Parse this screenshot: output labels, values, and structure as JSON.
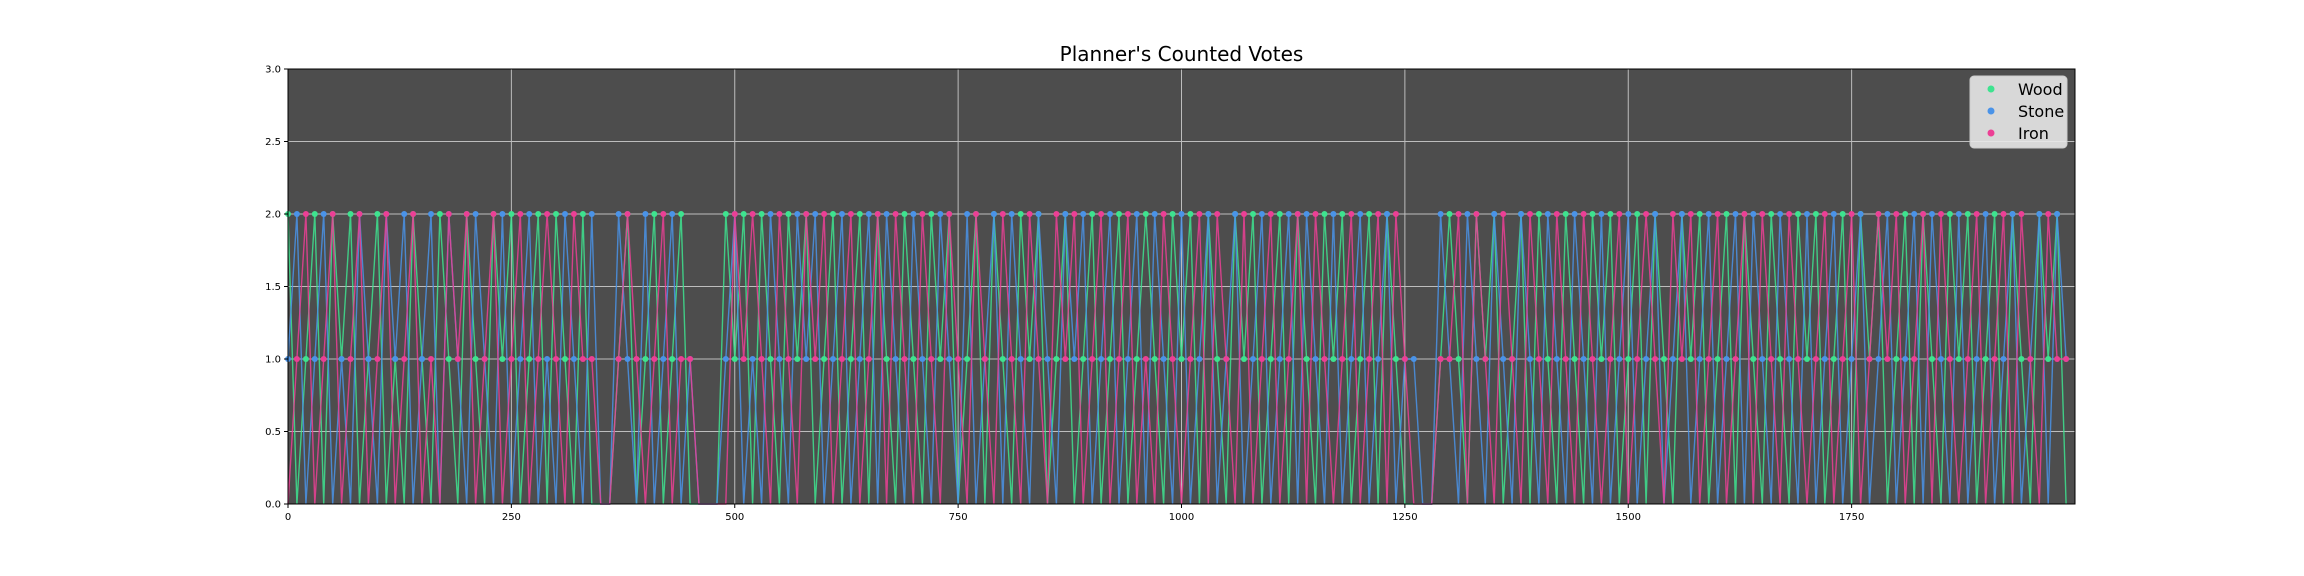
{
  "chart_data": {
    "type": "line",
    "title": "Planner's Counted Votes",
    "xlabel": "",
    "ylabel": "",
    "xlim": [
      0,
      2000
    ],
    "ylim": [
      0,
      3
    ],
    "x_ticks": [
      0,
      250,
      500,
      750,
      1000,
      1250,
      1500,
      1750
    ],
    "y_ticks": [
      0.0,
      0.5,
      1.0,
      1.5,
      2.0,
      2.5,
      3.0
    ],
    "x_tick_labels": [
      "0",
      "250",
      "500",
      "750",
      "1000",
      "1250",
      "1500",
      "1750"
    ],
    "y_tick_labels": [
      "0.0",
      "0.5",
      "1.0",
      "1.5",
      "2.0",
      "2.5",
      "3.0"
    ],
    "grid": true,
    "legend_position": "top-right",
    "series": [
      {
        "name": "Wood",
        "color": "#3ee38f"
      },
      {
        "name": "Stone",
        "color": "#4a93e8"
      },
      {
        "name": "Iron",
        "color": "#ec3f95"
      }
    ],
    "x_sampled": [
      0,
      10,
      20,
      30,
      40,
      50,
      60,
      70,
      80,
      90,
      100,
      110,
      120,
      130,
      140,
      150,
      160,
      170,
      180,
      190,
      200,
      210,
      220,
      230,
      240,
      250,
      260,
      270,
      280,
      290,
      300,
      310,
      320,
      330,
      340,
      350,
      360,
      370,
      380,
      390,
      400,
      410,
      420,
      430,
      440,
      450,
      460,
      470,
      480,
      490,
      500,
      510,
      520,
      530,
      540,
      550,
      560,
      570,
      580,
      590,
      600,
      610,
      620,
      630,
      640,
      650,
      660,
      670,
      680,
      690,
      700,
      710,
      720,
      730,
      740,
      750,
      760,
      770,
      780,
      790,
      800,
      810,
      820,
      830,
      840,
      850,
      860,
      870,
      880,
      890,
      900,
      910,
      920,
      930,
      940,
      950,
      960,
      970,
      980,
      990,
      1000,
      1010,
      1020,
      1030,
      1040,
      1050,
      1060,
      1070,
      1080,
      1090,
      1100,
      1110,
      1120,
      1130,
      1140,
      1150,
      1160,
      1170,
      1180,
      1190,
      1200,
      1210,
      1220,
      1230,
      1240,
      1250,
      1260,
      1270,
      1280,
      1290,
      1300,
      1310,
      1320,
      1330,
      1340,
      1350,
      1360,
      1370,
      1380,
      1390,
      1400,
      1410,
      1420,
      1430,
      1440,
      1450,
      1460,
      1470,
      1480,
      1490,
      1500,
      1510,
      1520,
      1530,
      1540,
      1550,
      1560,
      1570,
      1580,
      1590,
      1600,
      1610,
      1620,
      1630,
      1640,
      1650,
      1660,
      1670,
      1680,
      1690,
      1700,
      1710,
      1720,
      1730,
      1740,
      1750,
      1760,
      1770,
      1780,
      1790,
      1800,
      1810,
      1820,
      1830,
      1840,
      1850,
      1860,
      1870,
      1880,
      1890,
      1900,
      1910,
      1920,
      1930,
      1940,
      1950,
      1960,
      1970,
      1980,
      1990
    ],
    "values": {
      "Wood": [
        2,
        0,
        1,
        2,
        0,
        2,
        1,
        2,
        0,
        1,
        2,
        0,
        1,
        0,
        2,
        1,
        0,
        2,
        1,
        0,
        2,
        1,
        0,
        2,
        1,
        2,
        0,
        1,
        2,
        0,
        2,
        1,
        0,
        2,
        0,
        0,
        0,
        1,
        2,
        0,
        1,
        2,
        0,
        1,
        2,
        0,
        0,
        0,
        0,
        2,
        1,
        2,
        0,
        2,
        1,
        0,
        2,
        1,
        2,
        0,
        1,
        2,
        0,
        1,
        2,
        0,
        2,
        1,
        0,
        2,
        1,
        0,
        2,
        1,
        2,
        0,
        1,
        2,
        0,
        2,
        1,
        0,
        2,
        1,
        2,
        0,
        1,
        2,
        0,
        1,
        2,
        0,
        1,
        2,
        0,
        1,
        2,
        1,
        0,
        2,
        1,
        2,
        0,
        2,
        1,
        0,
        2,
        1,
        2,
        0,
        1,
        2,
        0,
        2,
        1,
        0,
        2,
        1,
        2,
        0,
        1,
        2,
        0,
        2,
        1,
        0,
        0,
        0,
        0,
        1,
        2,
        1,
        0,
        2,
        1,
        2,
        0,
        1,
        2,
        0,
        2,
        1,
        0,
        2,
        1,
        0,
        2,
        1,
        2,
        0,
        1,
        2,
        0,
        2,
        1,
        0,
        2,
        1,
        2,
        0,
        1,
        2,
        0,
        2,
        1,
        0,
        2,
        1,
        0,
        2,
        1,
        2,
        0,
        1,
        2,
        0,
        2,
        1,
        2,
        0,
        1,
        2,
        0,
        2,
        1,
        0,
        2,
        1,
        2,
        0,
        1,
        2,
        0,
        2,
        1,
        0,
        2,
        1,
        2,
        0
      ],
      "Stone": [
        1,
        2,
        0,
        1,
        2,
        0,
        1,
        0,
        2,
        1,
        0,
        2,
        1,
        2,
        0,
        1,
        2,
        0,
        2,
        1,
        0,
        2,
        1,
        0,
        2,
        0,
        1,
        2,
        0,
        1,
        0,
        2,
        1,
        0,
        2,
        0,
        0,
        2,
        1,
        0,
        2,
        0,
        1,
        2,
        0,
        1,
        0,
        0,
        0,
        1,
        2,
        0,
        1,
        0,
        2,
        1,
        0,
        2,
        1,
        2,
        0,
        1,
        2,
        0,
        1,
        2,
        0,
        2,
        1,
        0,
        2,
        1,
        0,
        2,
        1,
        0,
        2,
        0,
        1,
        2,
        0,
        2,
        1,
        0,
        2,
        1,
        0,
        2,
        1,
        2,
        0,
        1,
        2,
        0,
        1,
        2,
        0,
        2,
        1,
        0,
        2,
        0,
        1,
        2,
        0,
        1,
        2,
        0,
        1,
        2,
        0,
        1,
        2,
        0,
        2,
        1,
        0,
        2,
        0,
        1,
        2,
        0,
        1,
        2,
        0,
        1,
        1,
        0,
        0,
        2,
        1,
        0,
        2,
        1,
        0,
        2,
        1,
        0,
        2,
        1,
        0,
        2,
        1,
        0,
        2,
        1,
        0,
        2,
        0,
        1,
        2,
        0,
        1,
        2,
        0,
        1,
        2,
        0,
        1,
        2,
        0,
        1,
        2,
        0,
        2,
        1,
        0,
        2,
        1,
        0,
        2,
        0,
        1,
        2,
        0,
        1,
        2,
        0,
        1,
        2,
        0,
        1,
        2,
        0,
        2,
        1,
        0,
        2,
        0,
        1,
        2,
        0,
        1,
        2,
        0,
        1,
        2,
        0,
        2,
        1
      ],
      "Iron": [
        0,
        1,
        2,
        0,
        1,
        2,
        0,
        1,
        2,
        0,
        1,
        2,
        0,
        1,
        2,
        0,
        1,
        0,
        2,
        1,
        2,
        0,
        1,
        2,
        0,
        1,
        2,
        0,
        1,
        2,
        1,
        0,
        2,
        1,
        1,
        0,
        0,
        1,
        2,
        1,
        0,
        1,
        2,
        0,
        1,
        1,
        0,
        0,
        0,
        0,
        2,
        1,
        2,
        1,
        0,
        2,
        1,
        0,
        2,
        1,
        2,
        0,
        1,
        2,
        0,
        1,
        2,
        0,
        2,
        1,
        0,
        2,
        1,
        0,
        2,
        1,
        0,
        2,
        1,
        0,
        2,
        1,
        0,
        2,
        1,
        0,
        2,
        1,
        2,
        0,
        1,
        2,
        0,
        1,
        2,
        0,
        1,
        0,
        2,
        1,
        0,
        1,
        2,
        0,
        2,
        1,
        0,
        2,
        0,
        1,
        2,
        0,
        1,
        2,
        0,
        2,
        1,
        0,
        1,
        2,
        0,
        1,
        2,
        0,
        2,
        1,
        0,
        0,
        0,
        1,
        1,
        2,
        0,
        2,
        1,
        0,
        2,
        1,
        0,
        2,
        1,
        0,
        2,
        1,
        0,
        2,
        1,
        0,
        1,
        2,
        0,
        1,
        2,
        1,
        0,
        2,
        1,
        2,
        0,
        1,
        2,
        0,
        1,
        2,
        0,
        2,
        1,
        0,
        2,
        1,
        0,
        1,
        2,
        0,
        1,
        2,
        0,
        1,
        2,
        1,
        2,
        0,
        1,
        2,
        0,
        2,
        1,
        0,
        1,
        2,
        0,
        1,
        2,
        0,
        2,
        1,
        0,
        2,
        1,
        1
      ]
    }
  }
}
